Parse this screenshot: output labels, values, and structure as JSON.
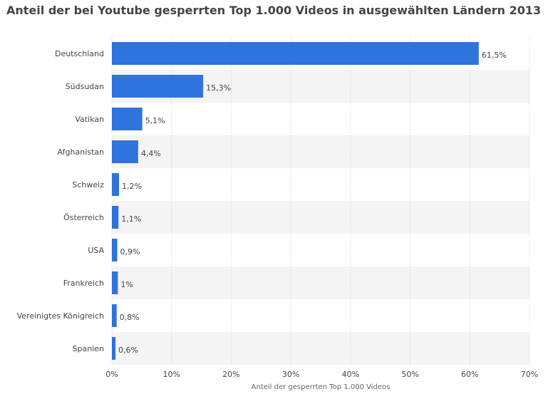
{
  "title": "Anteil der bei Youtube gesperrten Top 1.000 Videos in ausgewählten Ländern 2013",
  "colors": {
    "bar": "#2f73dc",
    "band": "#f4f4f4",
    "grid": "#cccccc",
    "text": "#444444"
  },
  "chart_data": {
    "type": "bar",
    "orientation": "horizontal",
    "title": "Anteil der bei Youtube gesperrten Top 1.000 Videos in ausgewählten Ländern 2013",
    "xlabel": "Anteil der gesperrten Top 1.000 Videos",
    "ylabel": "",
    "categories": [
      "Deutschland",
      "Südsudan",
      "Vatikan",
      "Afghanistan",
      "Schweiz",
      "Österreich",
      "USA",
      "Frankreich",
      "Vereinigtes Königreich",
      "Spanien"
    ],
    "values": [
      61.5,
      15.3,
      5.1,
      4.4,
      1.2,
      1.1,
      0.9,
      1.0,
      0.8,
      0.6
    ],
    "value_labels": [
      "61,5%",
      "15,3%",
      "5,1%",
      "4,4%",
      "1,2%",
      "1,1%",
      "0,9%",
      "1%",
      "0,8%",
      "0,6%"
    ],
    "xlim": [
      0,
      70
    ],
    "xticks": [
      0,
      10,
      20,
      30,
      40,
      50,
      60,
      70
    ],
    "xtick_labels": [
      "0%",
      "10%",
      "20%",
      "30%",
      "40%",
      "50%",
      "60%",
      "70%"
    ],
    "grid": true,
    "legend": "none"
  }
}
